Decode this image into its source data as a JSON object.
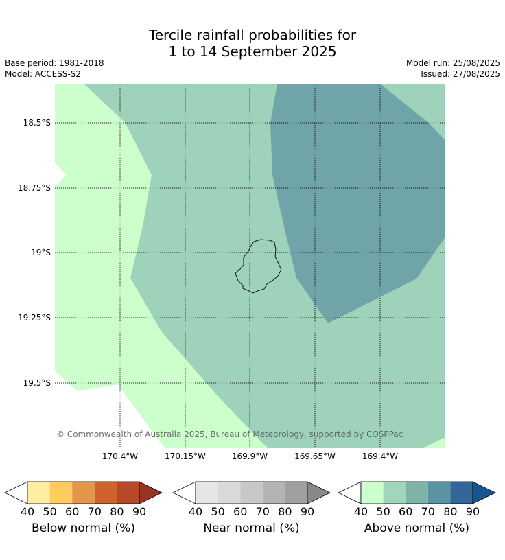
{
  "title": {
    "line1": "Tercile rainfall probabilities for",
    "line2": "1 to 14 September 2025"
  },
  "meta": {
    "base_period": "Base period: 1981-2018",
    "model": "Model: ACCESS-S2",
    "model_run": "Model run: 25/08/2025",
    "issued": "Issued: 27/08/2025"
  },
  "map": {
    "lat_labels": [
      "18.5°S",
      "18.75°S",
      "19°S",
      "19.25°S",
      "19.5°S"
    ],
    "lon_labels": [
      "170.4°W",
      "170.15°W",
      "169.9°W",
      "169.65°W",
      "169.4°W"
    ],
    "copyright": "© Commonwealth of Australia 2025, Bureau of Meteorology, supported by COSPPac",
    "zone_colors": {
      "above_40_50": "#ccffcc",
      "above_50_60": "#9fd2bb",
      "above_60_70": "#6fa5a9"
    }
  },
  "colorbars": [
    {
      "name": "below",
      "label": "Below normal (%)",
      "ticks": [
        "40",
        "50",
        "60",
        "70",
        "80",
        "90"
      ],
      "colors": [
        "#ffeda0",
        "#fecc5c",
        "#e3954a",
        "#d0622e",
        "#b64a28"
      ],
      "extend_color": "#993322"
    },
    {
      "name": "near",
      "label": "Near normal (%)",
      "ticks": [
        "40",
        "50",
        "60",
        "70",
        "80",
        "90"
      ],
      "colors": [
        "#e6e6e6",
        "#d9d9d9",
        "#c8c8c8",
        "#b4b4b4",
        "#a0a0a0"
      ],
      "extend_color": "#888888"
    },
    {
      "name": "above",
      "label": "Above normal (%)",
      "ticks": [
        "40",
        "50",
        "60",
        "70",
        "80",
        "90"
      ],
      "colors": [
        "#ccffcc",
        "#a1d6bd",
        "#80b3a8",
        "#5a93a3",
        "#336699"
      ],
      "extend_color": "#17558f"
    }
  ]
}
